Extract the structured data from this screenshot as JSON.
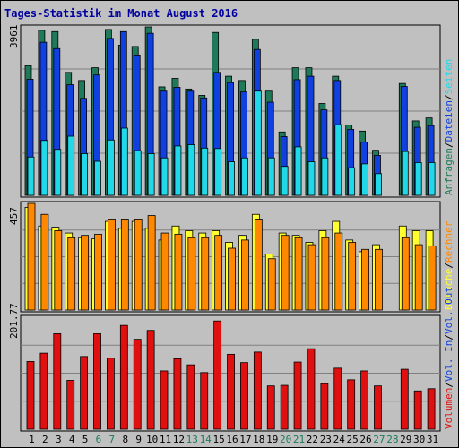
{
  "chart_data": {
    "type": "bar",
    "title": "Tages-Statistik im Monat August 2016",
    "colors": {
      "background": "#c0c0c0",
      "title": "#0000a0",
      "anfragen": "#1f7a5a",
      "dateien": "#1040e0",
      "seiten": "#20d8e8",
      "besuche": "#ffff30",
      "rechner": "#ff8800",
      "volumen": "#e01010",
      "weekend": "#1a7a5a",
      "frame": "#000000",
      "grid": "#808080"
    },
    "categories": [
      "1",
      "2",
      "3",
      "4",
      "5",
      "6",
      "7",
      "8",
      "9",
      "10",
      "11",
      "12",
      "13",
      "14",
      "15",
      "16",
      "17",
      "18",
      "19",
      "20",
      "21",
      "22",
      "23",
      "24",
      "25",
      "26",
      "27",
      "28",
      "29",
      "30",
      "31"
    ],
    "weekend_days": [
      "6",
      "7",
      "13",
      "14",
      "20",
      "21",
      "27",
      "28"
    ],
    "panels": [
      {
        "id": "hits",
        "ymax_label": "3961",
        "ymax": 3961,
        "axis_labels": [
          {
            "text": "Anfragen",
            "color": "#1f7a5a"
          },
          {
            "text": "Dateien",
            "color": "#1040e0"
          },
          {
            "text": "Seiten",
            "color": "#20d8e8"
          }
        ],
        "series": [
          {
            "name": "Anfragen",
            "color": "#1f7a5a",
            "values": [
              3050,
              3880,
              3850,
              2890,
              2700,
              3000,
              3900,
              3530,
              3500,
              3960,
              2550,
              2750,
              2500,
              2350,
              3830,
              2800,
              2700,
              3670,
              2450,
              1490,
              3000,
              3000,
              2160,
              2800,
              1650,
              1510,
              1060,
              0,
              2630,
              1750,
              1820
            ]
          },
          {
            "name": "Dateien",
            "color": "#1040e0",
            "values": [
              2730,
              3600,
              3450,
              2600,
              2280,
              2830,
              3690,
              3850,
              3300,
              3810,
              2450,
              2540,
              2450,
              2290,
              2890,
              2650,
              2430,
              3430,
              2190,
              1380,
              2720,
              2800,
              2010,
              2700,
              1550,
              1250,
              940,
              0,
              2560,
              1600,
              1640
            ]
          },
          {
            "name": "Seiten",
            "color": "#20d8e8",
            "values": [
              900,
              1290,
              1080,
              1390,
              980,
              800,
              1300,
              1580,
              1050,
              980,
              880,
              1160,
              1190,
              1110,
              1100,
              790,
              880,
              2450,
              880,
              680,
              1140,
              790,
              880,
              1660,
              650,
              740,
              510,
              0,
              1030,
              770,
              770
            ]
          }
        ]
      },
      {
        "id": "visits",
        "ymax_label": "457",
        "ymax": 457,
        "axis_labels": [
          {
            "text": "Besuche",
            "color": "#ffff30"
          },
          {
            "text": "Rechner",
            "color": "#ff8800"
          }
        ],
        "series": [
          {
            "name": "Besuche",
            "color": "#ffff30",
            "values": [
              440,
              360,
              355,
              330,
              310,
              305,
              380,
              350,
              380,
              350,
              300,
              360,
              340,
              330,
              340,
              290,
              320,
              410,
              240,
              330,
              320,
              290,
              340,
              380,
              300,
              250,
              280,
              0,
              360,
              340,
              340
            ]
          },
          {
            "name": "Rechner",
            "color": "#ff8800",
            "values": [
              457,
              410,
              340,
              310,
              320,
              325,
              390,
              390,
              390,
              405,
              330,
              325,
              310,
              310,
              320,
              265,
              300,
              390,
              220,
              320,
              310,
              280,
              310,
              330,
              290,
              260,
              260,
              0,
              310,
              280,
              275
            ]
          }
        ]
      },
      {
        "id": "volume",
        "ymax_label": "201.77",
        "ymax": 201.77,
        "axis_labels": [
          {
            "text": "Volumen",
            "color": "#e01010"
          },
          {
            "text": "Vol. In",
            "color": "#1040e0"
          },
          {
            "text": "Vol. Out",
            "color": "#1040e0"
          }
        ],
        "series": [
          {
            "name": "Volumen",
            "color": "#e01010",
            "values": [
              122,
              137,
              172,
              88,
              131,
              172,
              128,
              187,
              162,
              178,
              105,
              127,
              116,
              102,
              195,
              135,
              120,
              139,
              78,
              79,
              121,
              145,
              82,
              110,
              89,
              105,
              78,
              0,
              108,
              69,
              73
            ]
          }
        ]
      }
    ]
  }
}
